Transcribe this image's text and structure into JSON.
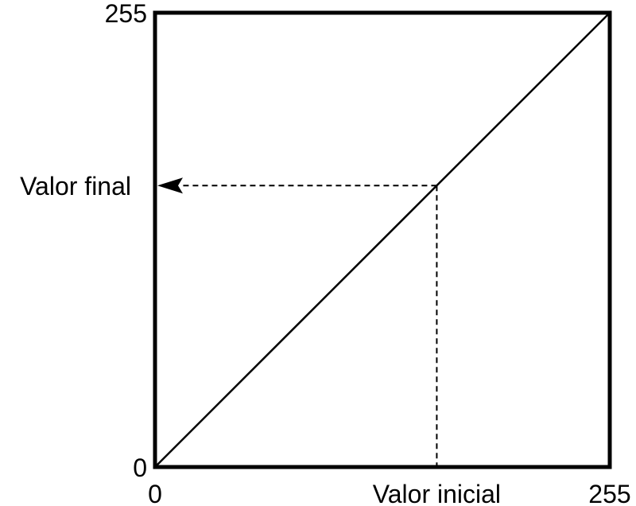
{
  "chart_data": {
    "type": "line",
    "xlim": [
      0,
      255
    ],
    "ylim": [
      0,
      255
    ],
    "x_ticks": [
      "0",
      "255"
    ],
    "y_ticks": [
      "0",
      "255"
    ],
    "series": [
      {
        "x": [
          0,
          255
        ],
        "y": [
          0,
          255
        ]
      }
    ],
    "annotations": {
      "initial_value_label": "Valor inicial",
      "final_value_label": "Valor final",
      "sample_point": {
        "x": 158,
        "y": 158
      }
    },
    "grid": false
  }
}
